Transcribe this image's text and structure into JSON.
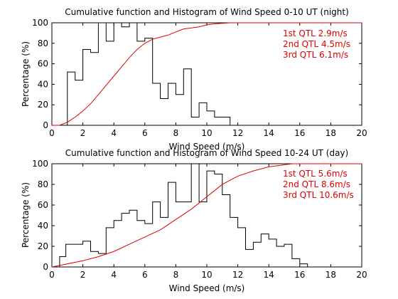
{
  "chart_data": [
    {
      "type": "line",
      "title": "Cumulative function and Histogram of Wind Speed 0-10 UT (night)",
      "xlabel": "Wind Speed (m/s)",
      "ylabel": "Percentage (%)",
      "xlim": [
        0,
        20
      ],
      "ylim": [
        0,
        100
      ],
      "xticks": [
        0,
        2,
        4,
        6,
        8,
        10,
        12,
        14,
        16,
        18,
        20
      ],
      "yticks": [
        0,
        20,
        40,
        60,
        80,
        100
      ],
      "grid": false,
      "colors": {
        "histogram": "#000000",
        "cumulative": "#e00000",
        "annotation": "#e00000"
      },
      "annotations": [
        "1st QTL 2.9m/s",
        "2nd QTL 4.5m/s",
        "3rd QTL 6.1m/s"
      ],
      "series": [
        {
          "style": "stairs",
          "edges": [
            0.5,
            1.0,
            1.5,
            2.0,
            2.5,
            3.0,
            3.5,
            4.0,
            4.5,
            5.0,
            5.5,
            6.0,
            6.5,
            7.0,
            7.5,
            8.0,
            8.5,
            9.0,
            9.5,
            10.0,
            10.5,
            11.0,
            11.5,
            12.0
          ],
          "values": [
            0,
            52,
            44,
            74,
            71,
            100,
            82,
            100,
            96,
            100,
            82,
            85,
            41,
            26,
            41,
            30,
            55,
            8,
            22,
            14,
            8,
            8,
            0
          ]
        },
        {
          "style": "line",
          "x": [
            0.0,
            0.5,
            1.0,
            1.5,
            2.0,
            2.5,
            3.0,
            3.5,
            4.0,
            4.5,
            5.0,
            5.5,
            6.0,
            6.5,
            7.0,
            7.5,
            8.0,
            8.5,
            9.0,
            9.5,
            10.0,
            10.5,
            11.0,
            11.5,
            12.0,
            20.0
          ],
          "y": [
            0,
            0,
            3,
            8,
            14,
            21,
            30,
            39,
            48,
            57,
            66,
            74,
            80,
            84,
            86,
            88,
            91,
            94,
            95,
            96,
            98,
            99,
            99.5,
            100,
            100,
            100
          ]
        }
      ]
    },
    {
      "type": "line",
      "title": "Cumulative function and Histogram of Wind Speed 10-24 UT (day)",
      "xlabel": "Wind Speed (m/s)",
      "ylabel": "Percentage (%)",
      "xlim": [
        0,
        20
      ],
      "ylim": [
        0,
        100
      ],
      "xticks": [
        0,
        2,
        4,
        6,
        8,
        10,
        12,
        14,
        16,
        18,
        20
      ],
      "yticks": [
        0,
        20,
        40,
        60,
        80,
        100
      ],
      "grid": false,
      "colors": {
        "histogram": "#000000",
        "cumulative": "#e00000",
        "annotation": "#e00000"
      },
      "annotations": [
        "1st QTL 5.6m/s",
        "2nd QTL 8.6m/s",
        "3rd QTL 10.6m/s"
      ],
      "series": [
        {
          "style": "stairs",
          "edges": [
            0.5,
            0.9,
            1.5,
            2.0,
            2.5,
            3.0,
            3.5,
            4.0,
            4.5,
            5.0,
            5.5,
            6.0,
            6.5,
            7.0,
            7.5,
            8.0,
            8.5,
            9.0,
            9.5,
            10.0,
            10.5,
            11.0,
            11.5,
            12.0,
            12.5,
            13.0,
            13.5,
            14.0,
            14.5,
            15.0,
            15.5,
            16.0,
            16.5,
            17.0
          ],
          "values": [
            10,
            22,
            22,
            25,
            15,
            13,
            38,
            45,
            52,
            55,
            45,
            42,
            63,
            48,
            82,
            63,
            63,
            100,
            63,
            93,
            90,
            70,
            48,
            38,
            17,
            24,
            32,
            27,
            20,
            22,
            8,
            3,
            0
          ]
        },
        {
          "style": "line",
          "x": [
            0.0,
            1.0,
            2.0,
            3.0,
            4.0,
            5.0,
            6.0,
            7.0,
            8.0,
            9.0,
            10.0,
            10.5,
            11.0,
            11.5,
            12.0,
            13.0,
            14.0,
            15.0,
            15.5,
            16.0,
            20.0
          ],
          "y": [
            0,
            3,
            6,
            10,
            15,
            22,
            29,
            36,
            46,
            56,
            68,
            74,
            80,
            84,
            88,
            93,
            97,
            99,
            100,
            100,
            100
          ]
        }
      ]
    }
  ]
}
